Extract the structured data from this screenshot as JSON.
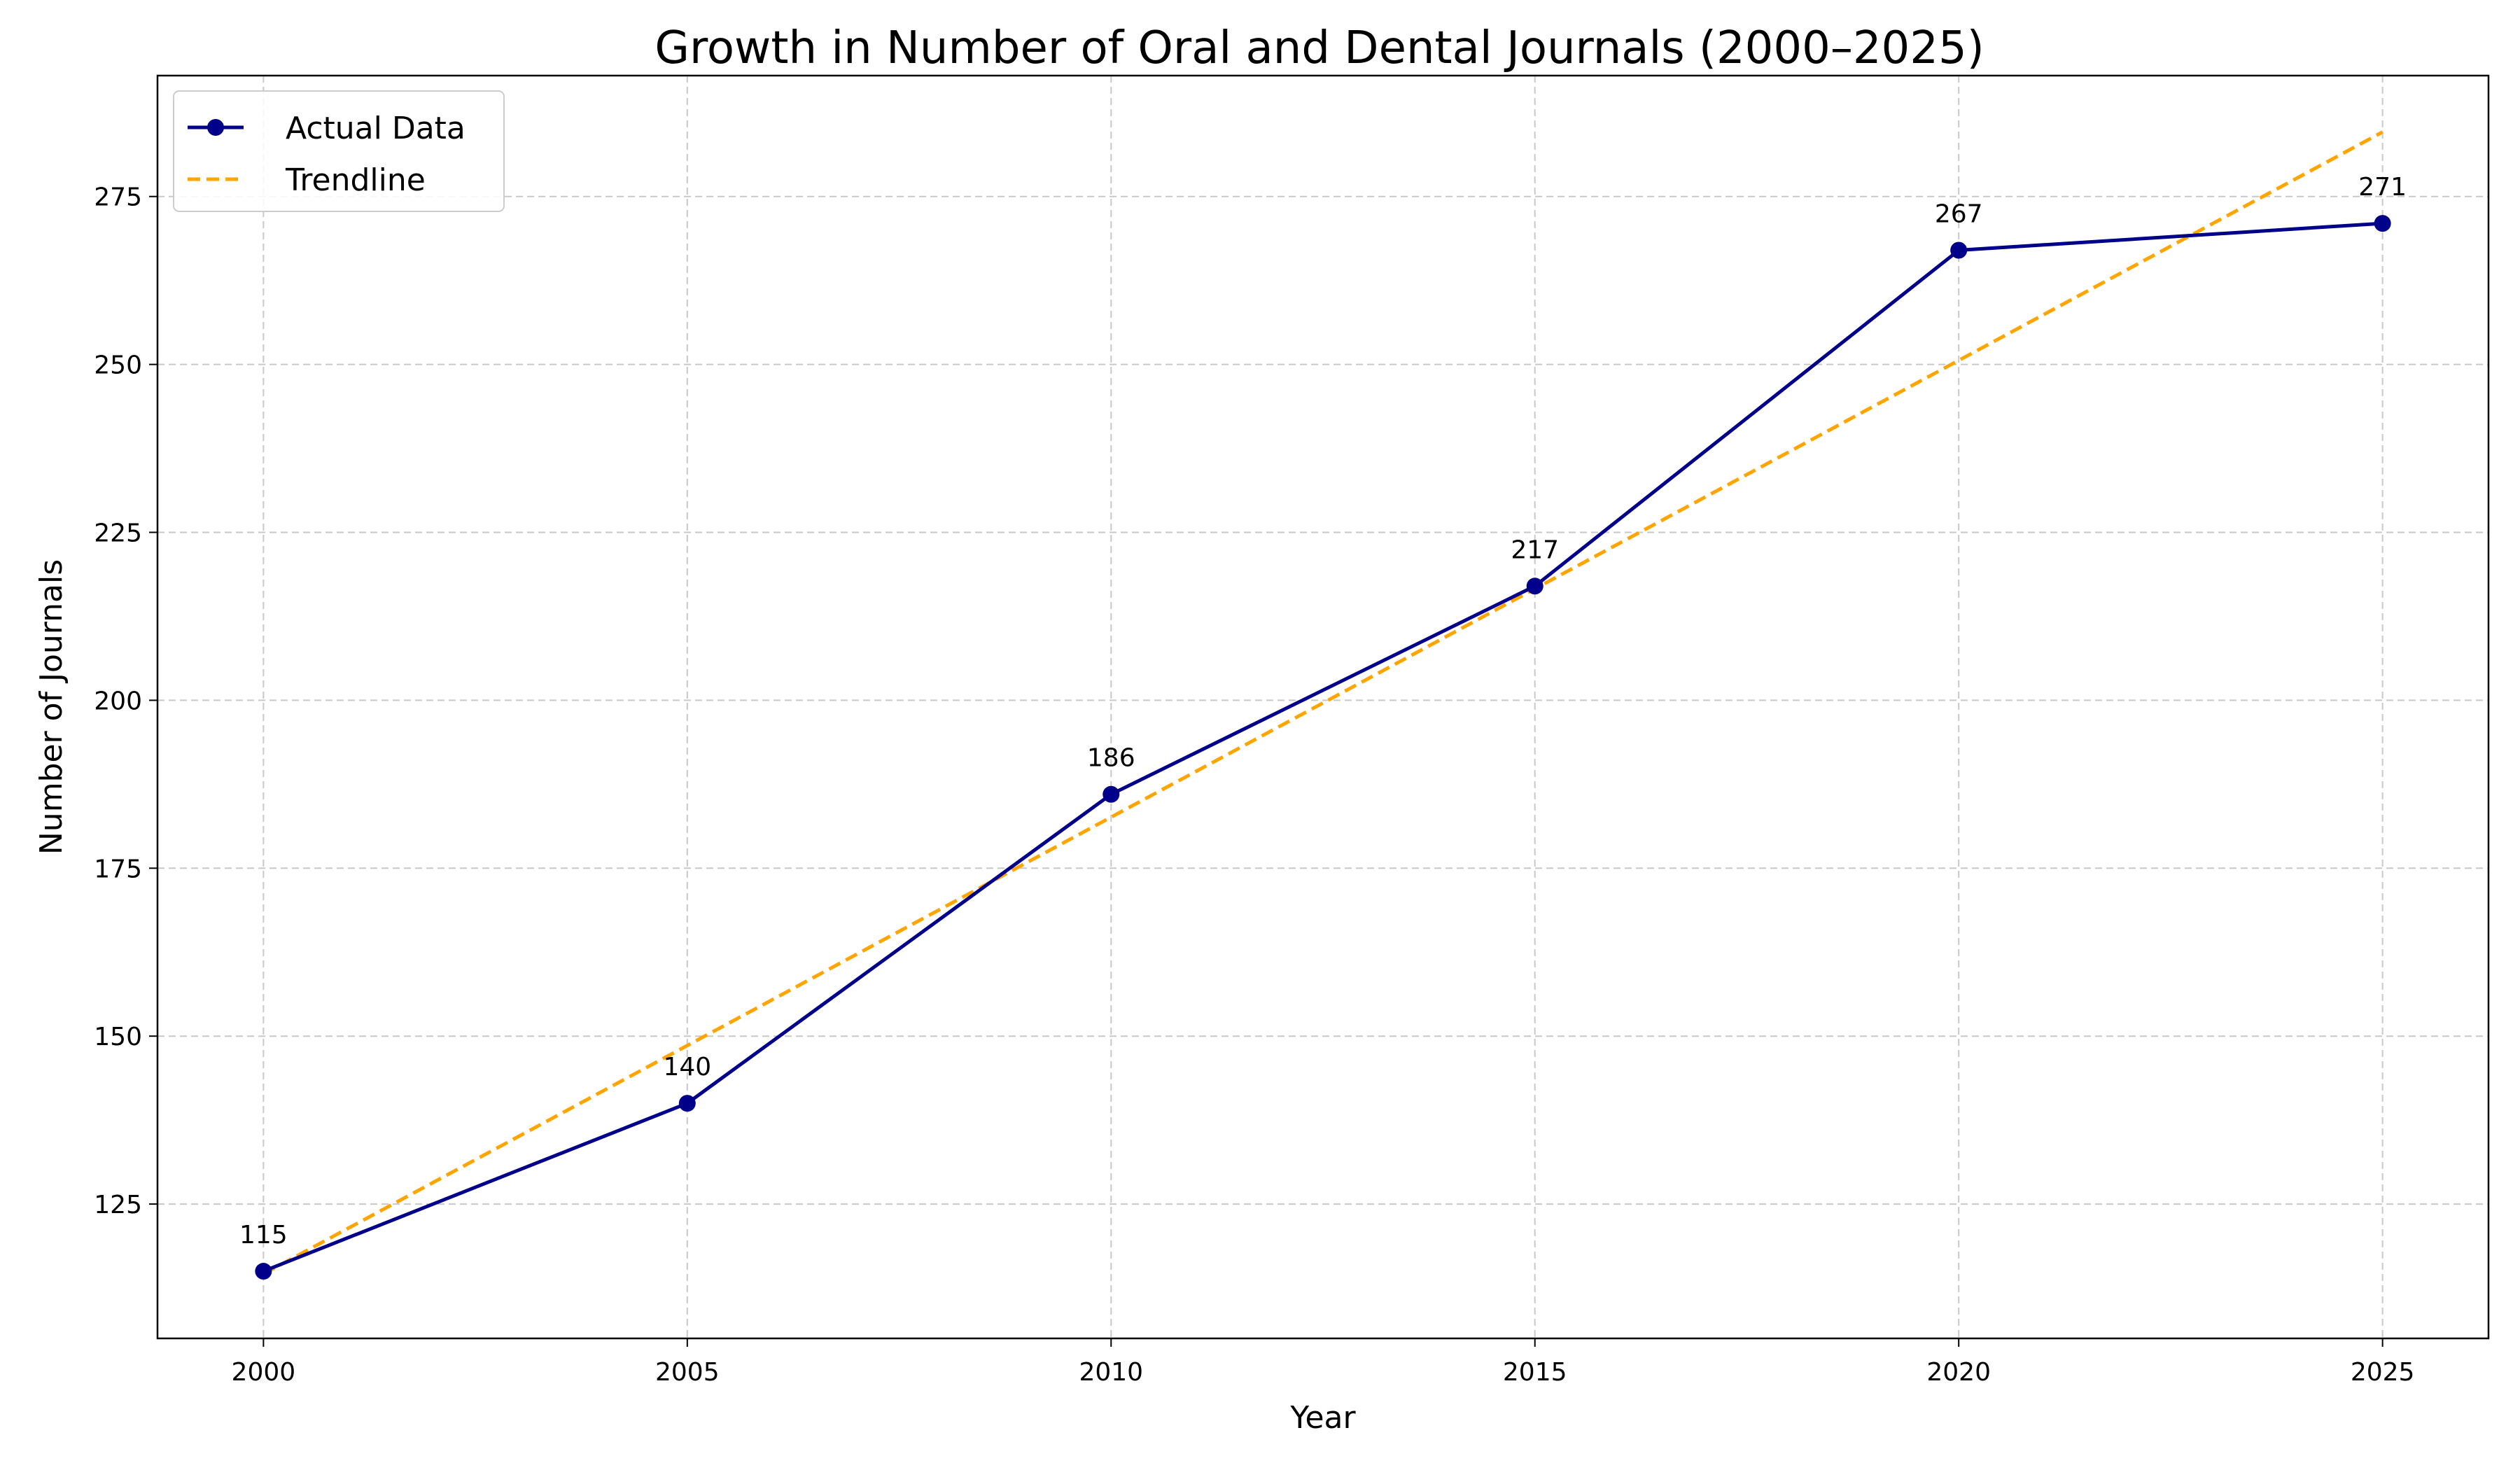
{
  "chart_data": {
    "type": "line",
    "title": "Growth in Number of Oral and Dental Journals (2000–2025)",
    "xlabel": "Year",
    "ylabel": "Number of Journals",
    "x": [
      2000,
      2005,
      2010,
      2015,
      2020,
      2025
    ],
    "xticks": [
      "2000",
      "2005",
      "2010",
      "2015",
      "2020",
      "2025"
    ],
    "yticks": [
      "125",
      "150",
      "175",
      "200",
      "225",
      "250",
      "275"
    ],
    "xlim": [
      1998.75,
      2026.25
    ],
    "ylim": [
      105,
      293
    ],
    "grid": true,
    "legend_position": "upper left",
    "series": [
      {
        "name": "Actual Data",
        "values": [
          115,
          140,
          186,
          217,
          267,
          271
        ],
        "labels": [
          "115",
          "140",
          "186",
          "217",
          "267",
          "271"
        ],
        "color": "#00008b",
        "style": "solid",
        "marker": "circle"
      },
      {
        "name": "Trendline",
        "values": [
          114.6,
          148.6,
          182.6,
          216.6,
          250.6,
          284.6
        ],
        "color": "#ffa500",
        "style": "dashed"
      }
    ]
  }
}
